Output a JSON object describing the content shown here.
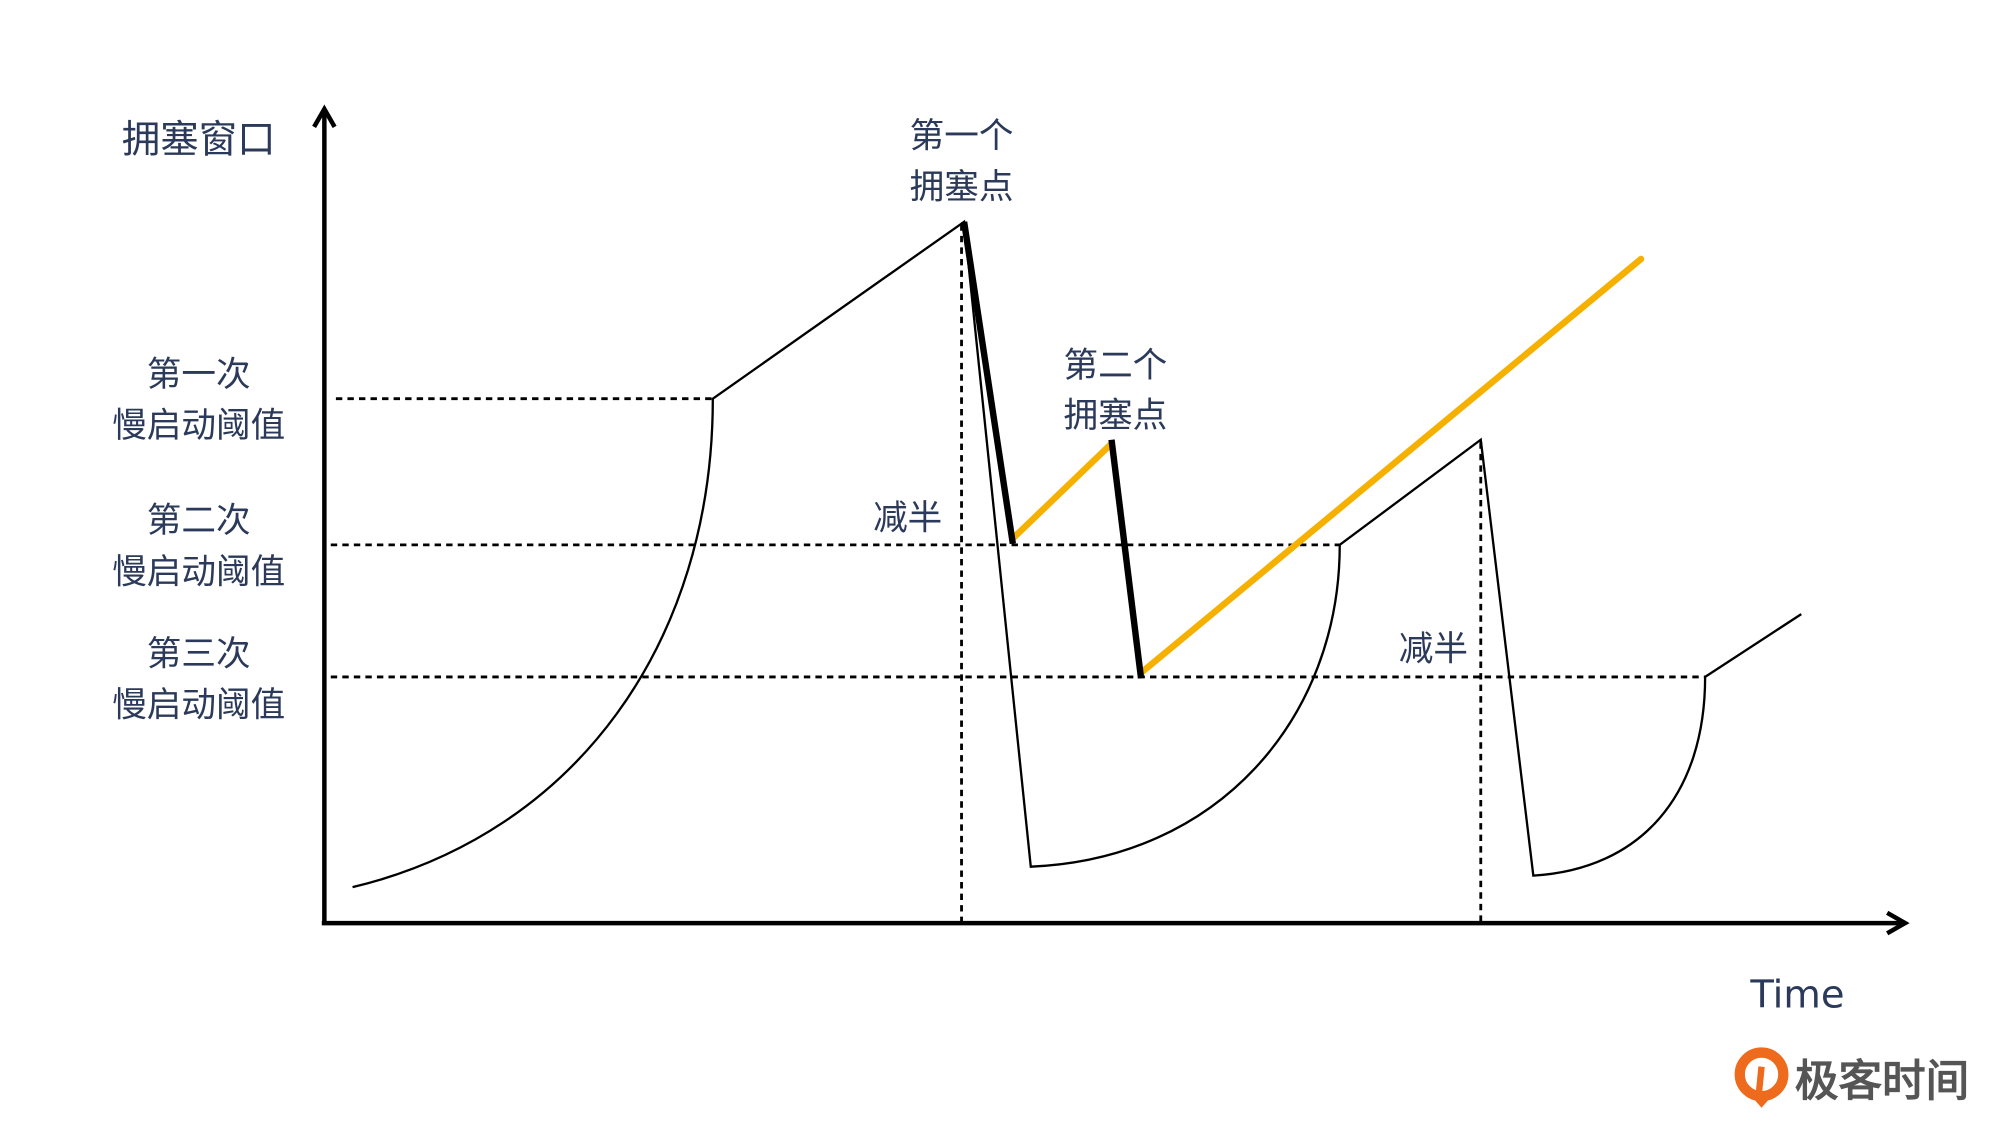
{
  "diagram": {
    "y_axis_label": "拥塞窗口",
    "x_axis_label": "Time",
    "thresholds": [
      {
        "line1": "第一次",
        "line2": "慢启动阈值"
      },
      {
        "line1": "第二次",
        "line2": "慢启动阈值"
      },
      {
        "line1": "第三次",
        "line2": "慢启动阈值"
      }
    ],
    "annotations": {
      "first_congestion": {
        "line1": "第一个",
        "line2": "拥塞点"
      },
      "second_congestion": {
        "line1": "第二个",
        "line2": "拥塞点"
      },
      "halve_1": "减半",
      "halve_2": "减半"
    },
    "colors": {
      "text": "#2b3a5a",
      "curve": "#000000",
      "fast_recovery": "#f5b000"
    }
  },
  "logo": {
    "text": "极客时间",
    "color": "#ee6a1c"
  }
}
